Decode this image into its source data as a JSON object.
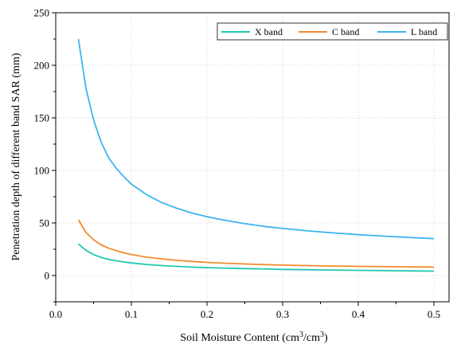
{
  "chart_data": {
    "type": "line",
    "title": "",
    "xlabel": {
      "main": "Soil Moisture Content (cm",
      "sup1": "3",
      "mid": "/cm",
      "sup2": "3",
      "end": ")"
    },
    "ylabel": "Penetration depth of different band SAR (mm)",
    "xlim": [
      0.0,
      0.52
    ],
    "ylim": [
      -25,
      250
    ],
    "x_ticks": [
      0.0,
      0.1,
      0.2,
      0.3,
      0.4,
      0.5
    ],
    "x_tick_labels": [
      "0.0",
      "0.1",
      "0.2",
      "0.3",
      "0.4",
      "0.5"
    ],
    "y_ticks": [
      0,
      50,
      100,
      150,
      200,
      250
    ],
    "y_tick_labels": [
      "0",
      "50",
      "100",
      "150",
      "200",
      "250"
    ],
    "grid": true,
    "legend_placement": "top-right",
    "x": [
      0.03,
      0.04,
      0.05,
      0.06,
      0.07,
      0.08,
      0.09,
      0.1,
      0.12,
      0.14,
      0.16,
      0.18,
      0.2,
      0.22,
      0.25,
      0.28,
      0.3,
      0.33,
      0.36,
      0.4,
      0.44,
      0.47,
      0.5
    ],
    "series": [
      {
        "name": "X band",
        "color": "#1fc7b0",
        "values": [
          30,
          24,
          20,
          17.2,
          15.4,
          14,
          12.9,
          12,
          10.5,
          9.5,
          8.7,
          8.0,
          7.5,
          7.1,
          6.6,
          6.1,
          5.8,
          5.5,
          5.2,
          4.9,
          4.6,
          4.4,
          4.2
        ]
      },
      {
        "name": "C band",
        "color": "#f28a2e",
        "values": [
          53,
          41,
          34,
          29.2,
          26,
          23.6,
          21.6,
          20,
          17.5,
          15.8,
          14.5,
          13.4,
          12.5,
          11.8,
          11.0,
          10.3,
          9.9,
          9.5,
          9.1,
          8.7,
          8.4,
          8.2,
          8.0
        ]
      },
      {
        "name": "L band",
        "color": "#3bb5ef",
        "values": [
          225,
          178,
          148,
          127,
          112,
          102,
          94,
          87,
          77,
          69.5,
          64,
          59.5,
          56,
          53,
          49.3,
          46.4,
          44.8,
          42.7,
          40.9,
          38.9,
          37.2,
          36.1,
          35.1
        ]
      }
    ]
  }
}
